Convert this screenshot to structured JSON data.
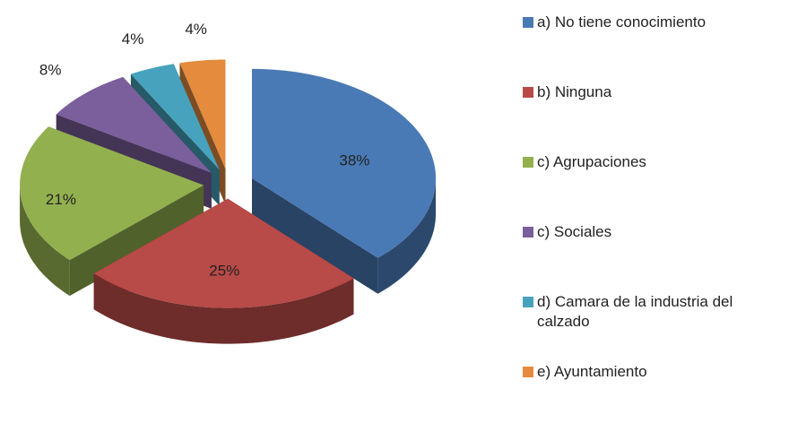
{
  "chart_data": {
    "type": "pie3d",
    "categories": [
      "a) No tiene conocimiento",
      "b) Ninguna",
      "c) Agrupaciones",
      "c) Sociales",
      "d) Camara de la industria del calzado",
      "e) Ayuntamiento"
    ],
    "values": [
      38,
      25,
      21,
      8,
      4,
      4
    ],
    "value_labels": [
      "38%",
      "25%",
      "21%",
      "8%",
      "4%",
      "4%"
    ],
    "colors": [
      "#4a7ab5",
      "#b84a47",
      "#93b04f",
      "#7b5e9c",
      "#47a3bd",
      "#e48b3d"
    ],
    "legend": "right"
  }
}
